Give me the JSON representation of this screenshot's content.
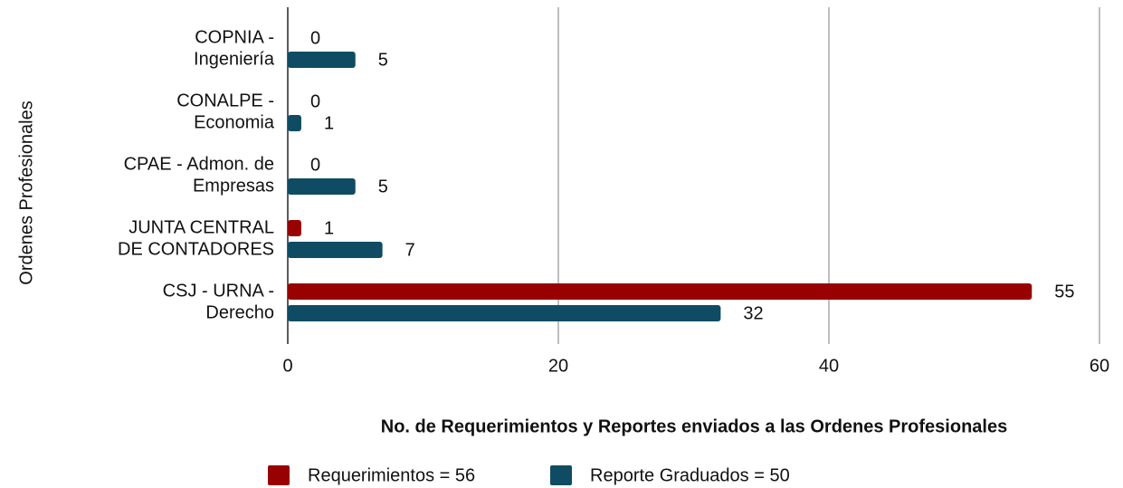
{
  "chart_data": {
    "type": "barh",
    "categories": [
      [
        "COPNIA -",
        "Ingeniería"
      ],
      [
        "CONALPE -",
        "Economia"
      ],
      [
        "CPAE - Admon. de",
        "Empresas"
      ],
      [
        "JUNTA CENTRAL",
        "DE CONTADORES"
      ],
      [
        "CSJ - URNA -",
        "Derecho"
      ]
    ],
    "series": [
      {
        "name": "Requerimientos = 56",
        "color": "#990000",
        "values": [
          0,
          0,
          0,
          1,
          55
        ]
      },
      {
        "name": "Reporte Graduados = 50",
        "color": "#0f4c64",
        "values": [
          5,
          1,
          5,
          7,
          32
        ]
      }
    ],
    "xlim": [
      0,
      60
    ],
    "xticks": [
      0,
      20,
      40,
      60
    ],
    "grid": true,
    "xlabel": "No. de Requerimientos y Reportes enviados a las Ordenes Profesionales",
    "ylabel": "Ordenes Profesionales",
    "legend": "bottom"
  }
}
